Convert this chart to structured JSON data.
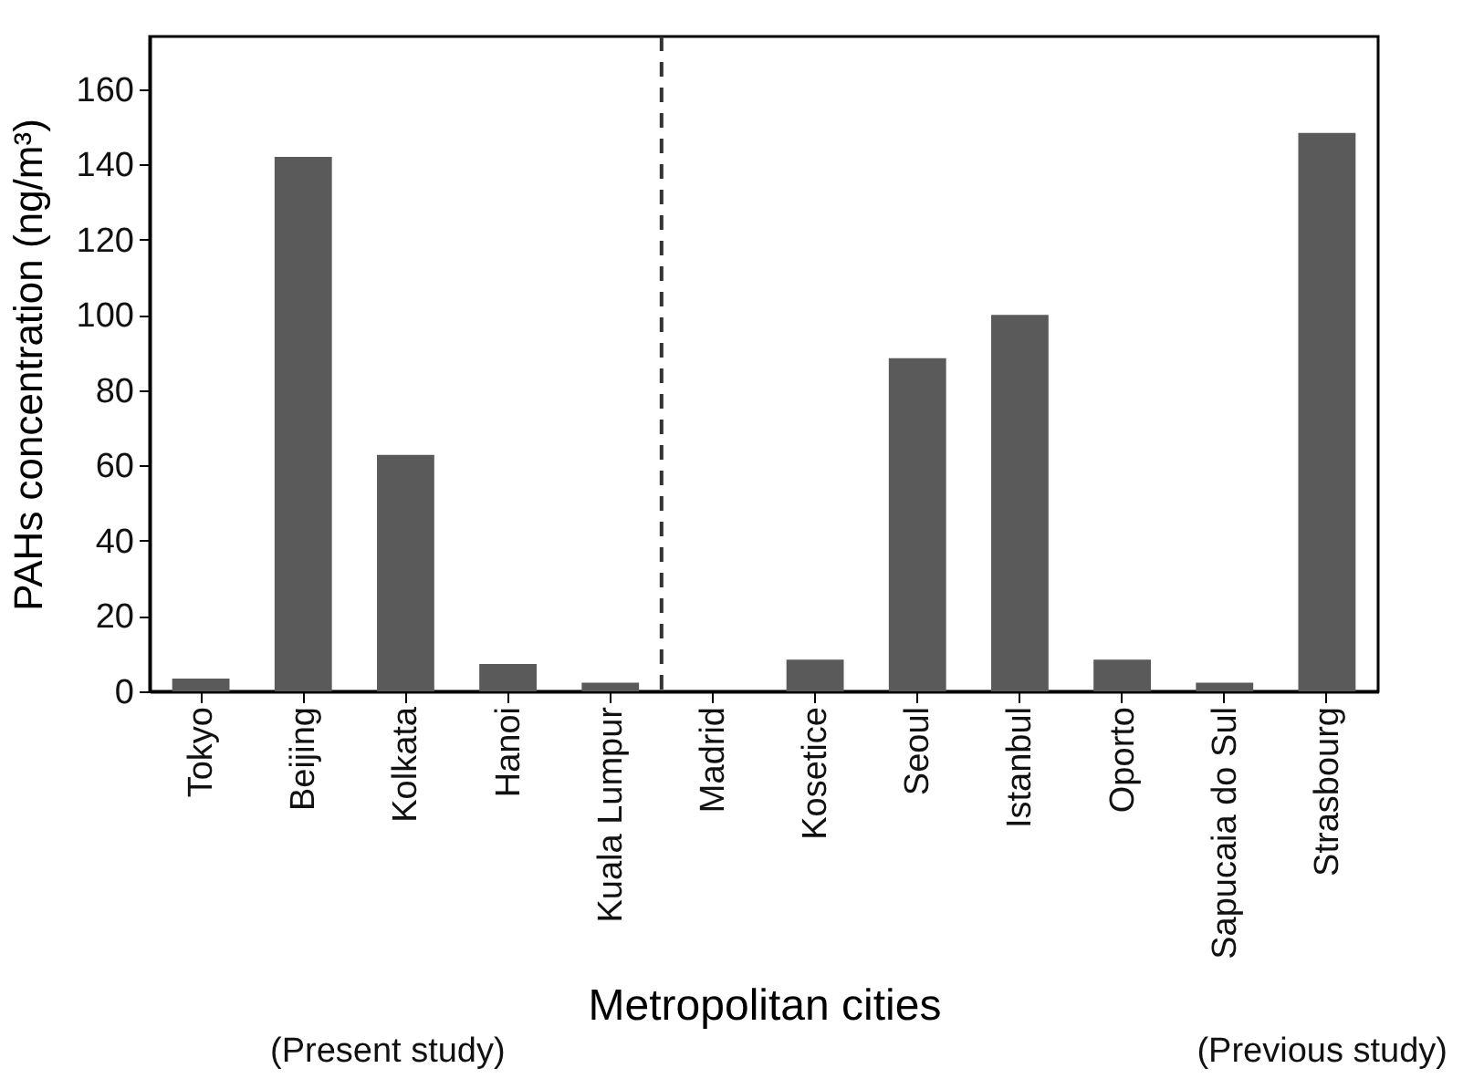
{
  "chart_data": {
    "type": "bar",
    "xlabel": "Metropolitan cities",
    "ylabel": "PAHs concentration (ng/m³)",
    "categories": [
      "Tokyo",
      "Beijing",
      "Kolkata",
      "Hanoi",
      "Kuala Lumpur",
      "Madrid",
      "Kosetice",
      "Seoul",
      "Istanbul",
      "Oporto",
      "Sapucaia do Sul",
      "Strasbourg"
    ],
    "values": [
      3.4,
      142,
      62.8,
      7.3,
      2.3,
      0,
      8.4,
      88.5,
      100,
      8.4,
      2.3,
      148.4
    ],
    "color": "#5a5a5a",
    "ylim": [
      0,
      174
    ],
    "yticks": [
      0,
      20,
      40,
      60,
      80,
      100,
      120,
      140,
      160
    ],
    "annotations": [
      "(Present study)",
      "(Previous study)"
    ],
    "grid": false
  }
}
